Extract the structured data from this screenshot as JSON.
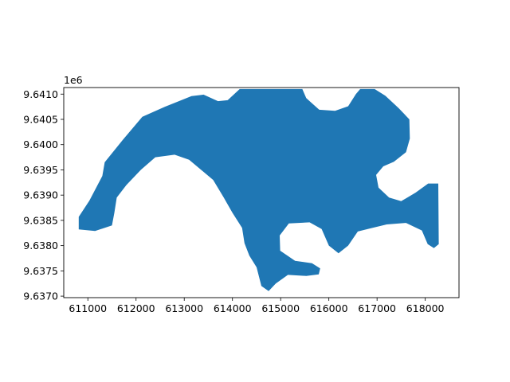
{
  "chart_data": {
    "type": "map",
    "title": "",
    "xlabel": "",
    "ylabel": "",
    "y_offset_label": "1e6",
    "xlim": [
      610500,
      618700
    ],
    "ylim": [
      9636970,
      9641130
    ],
    "x_ticks": [
      611000,
      612000,
      613000,
      614000,
      615000,
      616000,
      617000,
      618000
    ],
    "x_tick_labels": [
      "611000",
      "612000",
      "613000",
      "614000",
      "615000",
      "616000",
      "617000",
      "618000"
    ],
    "y_ticks": [
      9637000,
      9637500,
      9638000,
      9638500,
      9639000,
      9639500,
      9640000,
      9640500,
      9641000
    ],
    "y_tick_labels": [
      "9.6370",
      "9.6375",
      "9.6380",
      "9.6385",
      "9.6390",
      "9.6395",
      "9.6400",
      "9.6405",
      "9.6410"
    ],
    "fill_color": "#1f77b4",
    "grid": false,
    "polygon": [
      [
        610810,
        9638320
      ],
      [
        610810,
        9638570
      ],
      [
        611030,
        9638890
      ],
      [
        611300,
        9639380
      ],
      [
        611350,
        9639650
      ],
      [
        611730,
        9640100
      ],
      [
        612130,
        9640550
      ],
      [
        612600,
        9640750
      ],
      [
        613150,
        9640960
      ],
      [
        613400,
        9640990
      ],
      [
        613700,
        9640860
      ],
      [
        613900,
        9640880
      ],
      [
        614150,
        9641100
      ],
      [
        615450,
        9641100
      ],
      [
        615530,
        9640920
      ],
      [
        615800,
        9640690
      ],
      [
        616130,
        9640670
      ],
      [
        616400,
        9640760
      ],
      [
        616560,
        9641000
      ],
      [
        616650,
        9641100
      ],
      [
        616950,
        9641100
      ],
      [
        617170,
        9640970
      ],
      [
        617450,
        9640720
      ],
      [
        617670,
        9640500
      ],
      [
        617680,
        9640120
      ],
      [
        617600,
        9639850
      ],
      [
        617350,
        9639660
      ],
      [
        617130,
        9639570
      ],
      [
        616980,
        9639400
      ],
      [
        617030,
        9639150
      ],
      [
        617250,
        9638950
      ],
      [
        617500,
        9638880
      ],
      [
        617800,
        9639050
      ],
      [
        618060,
        9639230
      ],
      [
        618270,
        9639230
      ],
      [
        618280,
        9638030
      ],
      [
        618180,
        9637950
      ],
      [
        618050,
        9638030
      ],
      [
        617930,
        9638300
      ],
      [
        617600,
        9638450
      ],
      [
        617200,
        9638420
      ],
      [
        616850,
        9638340
      ],
      [
        616600,
        9638280
      ],
      [
        616400,
        9638000
      ],
      [
        616200,
        9637850
      ],
      [
        616000,
        9638000
      ],
      [
        615850,
        9638330
      ],
      [
        615600,
        9638460
      ],
      [
        615170,
        9638440
      ],
      [
        614980,
        9638200
      ],
      [
        614990,
        9637900
      ],
      [
        615300,
        9637700
      ],
      [
        615650,
        9637650
      ],
      [
        615820,
        9637550
      ],
      [
        615790,
        9637430
      ],
      [
        615530,
        9637400
      ],
      [
        615150,
        9637420
      ],
      [
        614900,
        9637250
      ],
      [
        614750,
        9637100
      ],
      [
        614600,
        9637200
      ],
      [
        614500,
        9637570
      ],
      [
        614350,
        9637800
      ],
      [
        614250,
        9638050
      ],
      [
        614200,
        9638350
      ],
      [
        614000,
        9638650
      ],
      [
        613820,
        9638950
      ],
      [
        613600,
        9639300
      ],
      [
        613100,
        9639700
      ],
      [
        612800,
        9639800
      ],
      [
        612400,
        9639750
      ],
      [
        612100,
        9639500
      ],
      [
        611800,
        9639200
      ],
      [
        611600,
        9638950
      ],
      [
        611550,
        9638650
      ],
      [
        611500,
        9638400
      ],
      [
        611150,
        9638290
      ]
    ]
  }
}
